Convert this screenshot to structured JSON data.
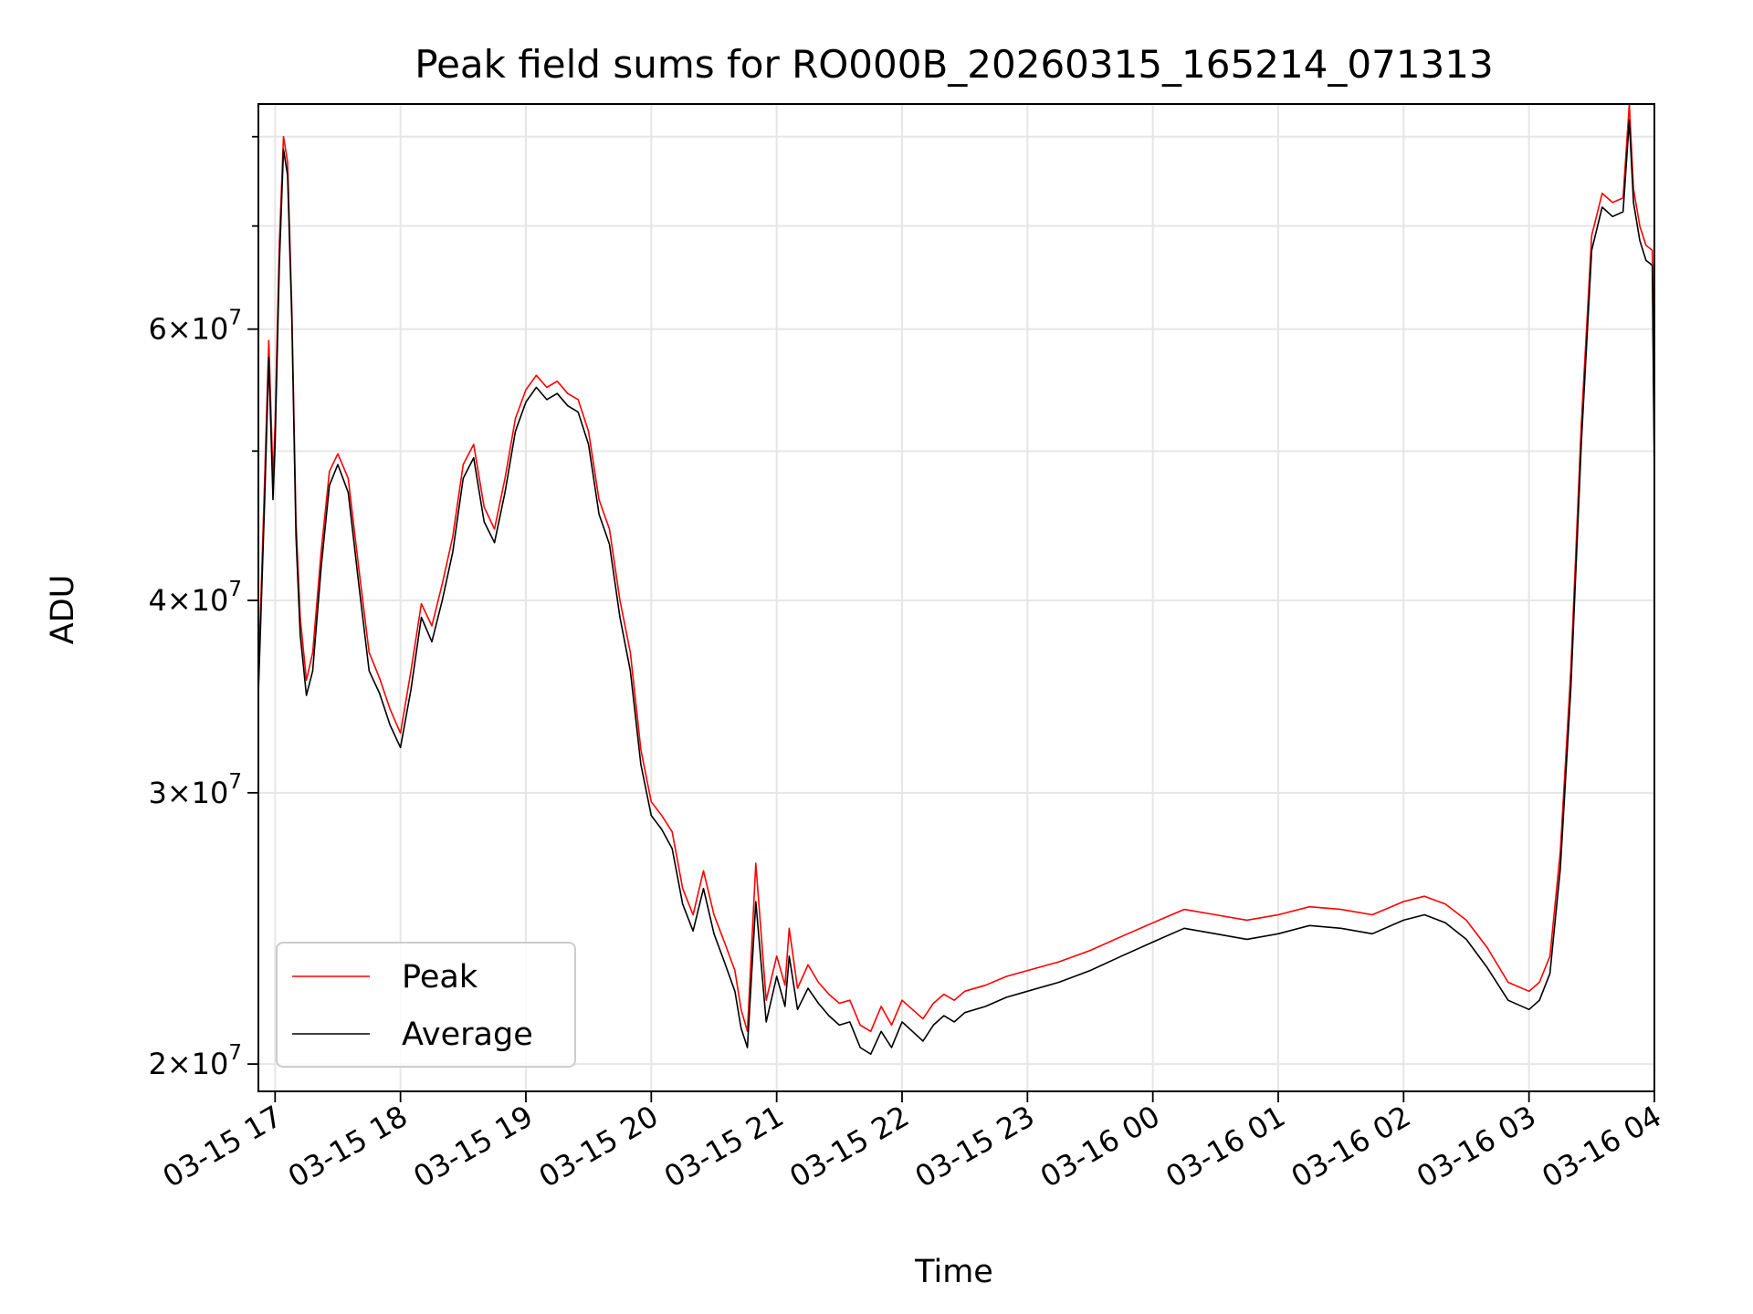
{
  "chart_data": {
    "type": "line",
    "title": "Peak field sums for RO000B_20260315_165214_071313",
    "xlabel": "Time",
    "ylabel": "ADU",
    "yscale": "log",
    "grid": true,
    "legend_position": "lower-left",
    "xlim": [
      "2026-03-15 16:52",
      "2026-03-16 04:00"
    ],
    "ylim": [
      19200000,
      84000000
    ],
    "x_ticks": [
      {
        "value": "2026-03-15 17:00",
        "label": "03-15 17"
      },
      {
        "value": "2026-03-15 18:00",
        "label": "03-15 18"
      },
      {
        "value": "2026-03-15 19:00",
        "label": "03-15 19"
      },
      {
        "value": "2026-03-15 20:00",
        "label": "03-15 20"
      },
      {
        "value": "2026-03-15 21:00",
        "label": "03-15 21"
      },
      {
        "value": "2026-03-15 22:00",
        "label": "03-15 22"
      },
      {
        "value": "2026-03-15 23:00",
        "label": "03-15 23"
      },
      {
        "value": "2026-03-16 00:00",
        "label": "03-16 00"
      },
      {
        "value": "2026-03-16 01:00",
        "label": "03-16 01"
      },
      {
        "value": "2026-03-16 02:00",
        "label": "03-16 02"
      },
      {
        "value": "2026-03-16 03:00",
        "label": "03-16 03"
      },
      {
        "value": "2026-03-16 04:00",
        "label": "03-16 04"
      }
    ],
    "y_ticks_major": [
      {
        "value": 20000000,
        "mantissa": "2",
        "base": "10",
        "exponent": "7"
      },
      {
        "value": 30000000,
        "mantissa": "3",
        "base": "10",
        "exponent": "7"
      },
      {
        "value": 40000000,
        "mantissa": "4",
        "base": "10",
        "exponent": "7"
      },
      {
        "value": 60000000,
        "mantissa": "6",
        "base": "10",
        "exponent": "7"
      }
    ],
    "y_ticks_minor": [
      50000000,
      70000000,
      80000000
    ],
    "series": [
      {
        "name": "Peak",
        "color": "#ff0000",
        "x": [
          "2026-03-15 16:52",
          "2026-03-15 16:55",
          "2026-03-15 16:57",
          "2026-03-15 16:59",
          "2026-03-15 17:00",
          "2026-03-15 17:02",
          "2026-03-15 17:04",
          "2026-03-15 17:06",
          "2026-03-15 17:08",
          "2026-03-15 17:10",
          "2026-03-15 17:12",
          "2026-03-15 17:15",
          "2026-03-15 17:18",
          "2026-03-15 17:22",
          "2026-03-15 17:26",
          "2026-03-15 17:30",
          "2026-03-15 17:35",
          "2026-03-15 17:40",
          "2026-03-15 17:45",
          "2026-03-15 17:50",
          "2026-03-15 17:55",
          "2026-03-15 18:00",
          "2026-03-15 18:05",
          "2026-03-15 18:10",
          "2026-03-15 18:15",
          "2026-03-15 18:20",
          "2026-03-15 18:25",
          "2026-03-15 18:30",
          "2026-03-15 18:35",
          "2026-03-15 18:40",
          "2026-03-15 18:45",
          "2026-03-15 18:50",
          "2026-03-15 18:55",
          "2026-03-15 19:00",
          "2026-03-15 19:05",
          "2026-03-15 19:10",
          "2026-03-15 19:15",
          "2026-03-15 19:20",
          "2026-03-15 19:25",
          "2026-03-15 19:30",
          "2026-03-15 19:35",
          "2026-03-15 19:40",
          "2026-03-15 19:45",
          "2026-03-15 19:50",
          "2026-03-15 19:55",
          "2026-03-15 20:00",
          "2026-03-15 20:05",
          "2026-03-15 20:10",
          "2026-03-15 20:15",
          "2026-03-15 20:20",
          "2026-03-15 20:25",
          "2026-03-15 20:30",
          "2026-03-15 20:35",
          "2026-03-15 20:40",
          "2026-03-15 20:43",
          "2026-03-15 20:46",
          "2026-03-15 20:50",
          "2026-03-15 20:55",
          "2026-03-15 21:00",
          "2026-03-15 21:04",
          "2026-03-15 21:06",
          "2026-03-15 21:10",
          "2026-03-15 21:15",
          "2026-03-15 21:20",
          "2026-03-15 21:25",
          "2026-03-15 21:30",
          "2026-03-15 21:35",
          "2026-03-15 21:40",
          "2026-03-15 21:45",
          "2026-03-15 21:50",
          "2026-03-15 21:55",
          "2026-03-15 22:00",
          "2026-03-15 22:05",
          "2026-03-15 22:10",
          "2026-03-15 22:15",
          "2026-03-15 22:20",
          "2026-03-15 22:25",
          "2026-03-15 22:30",
          "2026-03-15 22:40",
          "2026-03-15 22:50",
          "2026-03-15 23:00",
          "2026-03-15 23:15",
          "2026-03-15 23:30",
          "2026-03-15 23:45",
          "2026-03-16 00:00",
          "2026-03-16 00:15",
          "2026-03-16 00:30",
          "2026-03-16 00:45",
          "2026-03-16 01:00",
          "2026-03-16 01:15",
          "2026-03-16 01:30",
          "2026-03-16 01:45",
          "2026-03-16 02:00",
          "2026-03-16 02:10",
          "2026-03-16 02:20",
          "2026-03-16 02:30",
          "2026-03-16 02:40",
          "2026-03-16 02:50",
          "2026-03-16 03:00",
          "2026-03-16 03:05",
          "2026-03-16 03:10",
          "2026-03-16 03:15",
          "2026-03-16 03:20",
          "2026-03-16 03:25",
          "2026-03-16 03:30",
          "2026-03-16 03:35",
          "2026-03-16 03:40",
          "2026-03-16 03:45",
          "2026-03-16 03:48",
          "2026-03-16 03:50",
          "2026-03-16 03:53",
          "2026-03-16 03:56",
          "2026-03-16 03:59",
          "2026-03-16 04:00"
        ],
        "values": [
          35500000,
          48000000,
          59000000,
          48000000,
          52000000,
          68000000,
          80000000,
          77000000,
          62000000,
          45000000,
          39000000,
          35500000,
          37000000,
          43000000,
          48500000,
          49800000,
          48000000,
          42000000,
          37000000,
          35600000,
          34000000,
          32800000,
          36000000,
          39800000,
          38500000,
          41000000,
          44000000,
          49000000,
          50500000,
          46000000,
          44500000,
          48000000,
          52500000,
          54800000,
          56000000,
          55000000,
          55500000,
          54500000,
          54000000,
          51500000,
          46500000,
          44500000,
          40000000,
          37000000,
          32000000,
          29600000,
          29000000,
          28300000,
          26000000,
          25000000,
          26700000,
          25000000,
          24000000,
          23000000,
          21700000,
          21000000,
          27000000,
          22000000,
          23500000,
          22500000,
          24500000,
          22400000,
          23200000,
          22600000,
          22200000,
          21900000,
          22000000,
          21200000,
          21000000,
          21800000,
          21200000,
          22000000,
          21700000,
          21400000,
          21900000,
          22200000,
          22000000,
          22300000,
          22500000,
          22800000,
          23000000,
          23300000,
          23700000,
          24200000,
          24700000,
          25200000,
          25000000,
          24800000,
          25000000,
          25300000,
          25200000,
          25000000,
          25500000,
          25700000,
          25400000,
          24800000,
          23800000,
          22600000,
          22300000,
          22600000,
          23500000,
          27500000,
          36000000,
          52000000,
          69000000,
          73500000,
          72500000,
          73000000,
          84000000,
          74000000,
          70000000,
          68000000,
          67500000,
          49000000
        ]
      },
      {
        "name": "Average",
        "color": "#000000",
        "x": [
          "2026-03-15 16:52",
          "2026-03-15 16:55",
          "2026-03-15 16:57",
          "2026-03-15 16:59",
          "2026-03-15 17:00",
          "2026-03-15 17:02",
          "2026-03-15 17:04",
          "2026-03-15 17:06",
          "2026-03-15 17:08",
          "2026-03-15 17:10",
          "2026-03-15 17:12",
          "2026-03-15 17:15",
          "2026-03-15 17:18",
          "2026-03-15 17:22",
          "2026-03-15 17:26",
          "2026-03-15 17:30",
          "2026-03-15 17:35",
          "2026-03-15 17:40",
          "2026-03-15 17:45",
          "2026-03-15 17:50",
          "2026-03-15 17:55",
          "2026-03-15 18:00",
          "2026-03-15 18:05",
          "2026-03-15 18:10",
          "2026-03-15 18:15",
          "2026-03-15 18:20",
          "2026-03-15 18:25",
          "2026-03-15 18:30",
          "2026-03-15 18:35",
          "2026-03-15 18:40",
          "2026-03-15 18:45",
          "2026-03-15 18:50",
          "2026-03-15 18:55",
          "2026-03-15 19:00",
          "2026-03-15 19:05",
          "2026-03-15 19:10",
          "2026-03-15 19:15",
          "2026-03-15 19:20",
          "2026-03-15 19:25",
          "2026-03-15 19:30",
          "2026-03-15 19:35",
          "2026-03-15 19:40",
          "2026-03-15 19:45",
          "2026-03-15 19:50",
          "2026-03-15 19:55",
          "2026-03-15 20:00",
          "2026-03-15 20:05",
          "2026-03-15 20:10",
          "2026-03-15 20:15",
          "2026-03-15 20:20",
          "2026-03-15 20:25",
          "2026-03-15 20:30",
          "2026-03-15 20:35",
          "2026-03-15 20:40",
          "2026-03-15 20:43",
          "2026-03-15 20:46",
          "2026-03-15 20:50",
          "2026-03-15 20:55",
          "2026-03-15 21:00",
          "2026-03-15 21:04",
          "2026-03-15 21:06",
          "2026-03-15 21:10",
          "2026-03-15 21:15",
          "2026-03-15 21:20",
          "2026-03-15 21:25",
          "2026-03-15 21:30",
          "2026-03-15 21:35",
          "2026-03-15 21:40",
          "2026-03-15 21:45",
          "2026-03-15 21:50",
          "2026-03-15 21:55",
          "2026-03-15 22:00",
          "2026-03-15 22:05",
          "2026-03-15 22:10",
          "2026-03-15 22:15",
          "2026-03-15 22:20",
          "2026-03-15 22:25",
          "2026-03-15 22:30",
          "2026-03-15 22:40",
          "2026-03-15 22:50",
          "2026-03-15 23:00",
          "2026-03-15 23:15",
          "2026-03-15 23:30",
          "2026-03-15 23:45",
          "2026-03-16 00:00",
          "2026-03-16 00:15",
          "2026-03-16 00:30",
          "2026-03-16 00:45",
          "2026-03-16 01:00",
          "2026-03-16 01:15",
          "2026-03-16 01:30",
          "2026-03-16 01:45",
          "2026-03-16 02:00",
          "2026-03-16 02:10",
          "2026-03-16 02:20",
          "2026-03-16 02:30",
          "2026-03-16 02:40",
          "2026-03-16 02:50",
          "2026-03-16 03:00",
          "2026-03-16 03:05",
          "2026-03-16 03:10",
          "2026-03-16 03:15",
          "2026-03-16 03:20",
          "2026-03-16 03:25",
          "2026-03-16 03:30",
          "2026-03-16 03:35",
          "2026-03-16 03:40",
          "2026-03-16 03:45",
          "2026-03-16 03:48",
          "2026-03-16 03:50",
          "2026-03-16 03:53",
          "2026-03-16 03:56",
          "2026-03-16 03:59",
          "2026-03-16 04:00"
        ],
        "values": [
          34800000,
          46500000,
          57500000,
          46500000,
          50500000,
          66000000,
          78500000,
          75500000,
          61000000,
          44000000,
          38000000,
          34700000,
          36000000,
          42000000,
          47500000,
          49000000,
          47000000,
          41000000,
          36000000,
          34800000,
          33200000,
          32100000,
          35000000,
          39000000,
          37600000,
          40000000,
          43000000,
          48000000,
          49500000,
          45000000,
          43600000,
          47000000,
          51500000,
          53800000,
          55000000,
          54000000,
          54500000,
          53500000,
          53000000,
          50500000,
          45500000,
          43500000,
          39000000,
          36000000,
          31300000,
          29000000,
          28400000,
          27600000,
          25400000,
          24400000,
          26000000,
          24300000,
          23300000,
          22300000,
          21100000,
          20500000,
          25500000,
          21300000,
          22800000,
          21800000,
          23500000,
          21700000,
          22400000,
          21900000,
          21500000,
          21200000,
          21300000,
          20500000,
          20300000,
          21000000,
          20500000,
          21300000,
          21000000,
          20700000,
          21200000,
          21500000,
          21300000,
          21600000,
          21800000,
          22100000,
          22300000,
          22600000,
          23000000,
          23500000,
          24000000,
          24500000,
          24300000,
          24100000,
          24300000,
          24600000,
          24500000,
          24300000,
          24800000,
          25000000,
          24700000,
          24100000,
          23100000,
          22000000,
          21700000,
          22000000,
          22900000,
          26800000,
          35000000,
          50500000,
          67500000,
          72000000,
          71000000,
          71500000,
          82000000,
          72500000,
          68500000,
          66500000,
          66000000,
          48000000
        ]
      }
    ]
  }
}
